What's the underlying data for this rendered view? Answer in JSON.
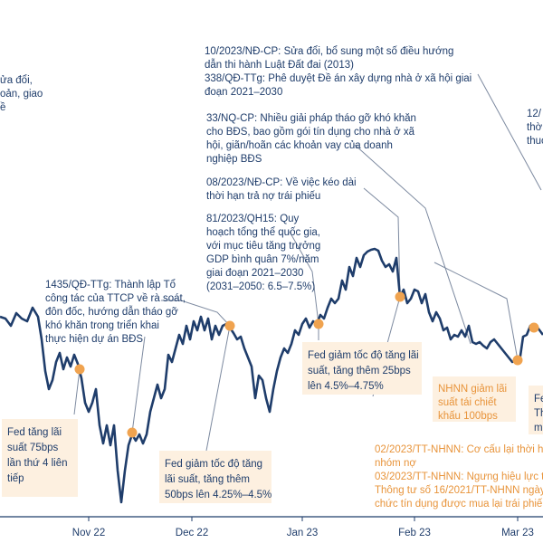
{
  "colors": {
    "line": "#1f3d6b",
    "marker": "#f0a34f",
    "box_bg": "#fdf0e0",
    "orange_text": "#e8943b",
    "axis": "#1f3d6b",
    "leader": "#7d8aa0"
  },
  "chart_data": {
    "type": "line",
    "title": "",
    "xlabel": "",
    "ylabel": "",
    "grid": false,
    "x_ticks": [
      "Nov 22",
      "Dec 22",
      "Jan 23",
      "Feb 23",
      "Mar 23"
    ],
    "annotations": {
      "top_left_cut": [
        "ửa đổi,",
        "oản, giao",
        "ề"
      ],
      "a1": [
        "10/2023/NĐ-CP: Sửa đổi, bổ sung một số điều hướng",
        "dẫn thi hành Luật Đất đai (2013)",
        "338/QĐ-TTg: Phê duyệt Đề án xây dựng nhà ở xã hội giai",
        "đoạn 2021–2030"
      ],
      "a2": [
        "33/NQ-CP: Nhiều giải pháp tháo gỡ khó khăn",
        "cho BĐS, bao gồm gói tín dụng cho nhà ở xã",
        "hội, giãn/hoãn các khoản vay của doanh",
        "nghiệp BĐS"
      ],
      "a3": [
        "08/2023/NĐ-CP: Về việc kéo dài",
        "thời hạn trả nợ trái phiếu"
      ],
      "a4": [
        "81/2023/QH15: Quy",
        "hoạch tổng thể quốc gia,",
        "với mục tiêu tăng trưởng",
        "GDP bình quân 7%/năm",
        "giai đoạn 2021–2030",
        "(2031–2050: 6.5–7.5%)"
      ],
      "a5": [
        "1435/QĐ-TTg: Thành lập Tổ",
        "công tác của TTCP về rà soát,",
        "đôn đốc, hướng dẫn tháo gỡ",
        "khó khăn trong triển khai",
        "thực hiện dự án BĐS"
      ],
      "a6_cut": [
        "12/",
        "thờ",
        "thuc"
      ],
      "box_fed1": [
        "Fed tăng lãi",
        "suất 75bps",
        "lần thứ 4 liên",
        "tiếp"
      ],
      "box_fed2": [
        "Fed giảm tốc độ tăng",
        "lãi suất, tăng thêm",
        "50bps lên 4.25%–4.5%"
      ],
      "box_fed3": [
        "Fed giảm tốc độ tăng lãi",
        "suất, tăng thêm 25bps",
        "lên 4.5%–4.75%"
      ],
      "box_nhnn": [
        "NHNN giảm lãi",
        "suất tái chiết",
        "khấu 100bps"
      ],
      "box_right_cut": [
        "Fe",
        "Th",
        "mụ"
      ],
      "orange_bottom": [
        "02/2023/TT-NHNN: Cơ cấu lại thời hạ",
        "nhóm nợ",
        "03/2023/TT-NHNN: Ngưng hiệu lực t",
        "Thông tư số 16/2021/TT-NHNN ngày",
        "chức tín dụng được mua lại trái phiế"
      ]
    },
    "series": [
      {
        "values": [
          [
            0,
            350
          ],
          [
            6,
            352
          ],
          [
            12,
            360
          ],
          [
            18,
            346
          ],
          [
            24,
            352
          ],
          [
            30,
            355
          ],
          [
            36,
            340
          ],
          [
            42,
            350
          ],
          [
            46,
            375
          ],
          [
            50,
            410
          ],
          [
            54,
            430
          ],
          [
            58,
            420
          ],
          [
            62,
            400
          ],
          [
            66,
            390
          ],
          [
            70,
            408
          ],
          [
            74,
            395
          ],
          [
            78,
            405
          ],
          [
            82,
            392
          ],
          [
            86,
            402
          ],
          [
            90,
            418
          ],
          [
            94,
            445
          ],
          [
            98,
            455
          ],
          [
            102,
            445
          ],
          [
            106,
            430
          ],
          [
            110,
            470
          ],
          [
            114,
            490
          ],
          [
            118,
            470
          ],
          [
            122,
            492
          ],
          [
            126,
            470
          ],
          [
            130,
            520
          ],
          [
            134,
            555
          ],
          [
            138,
            520
          ],
          [
            142,
            492
          ],
          [
            146,
            480
          ],
          [
            150,
            487
          ],
          [
            154,
            480
          ],
          [
            158,
            490
          ],
          [
            162,
            480
          ],
          [
            166,
            455
          ],
          [
            170,
            440
          ],
          [
            174,
            425
          ],
          [
            178,
            440
          ],
          [
            182,
            430
          ],
          [
            186,
            392
          ],
          [
            190,
            400
          ],
          [
            194,
            385
          ],
          [
            198,
            370
          ],
          [
            202,
            380
          ],
          [
            206,
            360
          ],
          [
            210,
            375
          ],
          [
            214,
            355
          ],
          [
            218,
            365
          ],
          [
            222,
            350
          ],
          [
            226,
            365
          ],
          [
            230,
            352
          ],
          [
            234,
            375
          ],
          [
            238,
            360
          ],
          [
            242,
            370
          ],
          [
            246,
            360
          ],
          [
            250,
            358
          ],
          [
            254,
            362
          ],
          [
            258,
            368
          ],
          [
            262,
            375
          ],
          [
            266,
            372
          ],
          [
            270,
            385
          ],
          [
            274,
            395
          ],
          [
            278,
            405
          ],
          [
            282,
            440
          ],
          [
            286,
            415
          ],
          [
            290,
            420
          ],
          [
            294,
            440
          ],
          [
            298,
            455
          ],
          [
            302,
            430
          ],
          [
            306,
            410
          ],
          [
            310,
            395
          ],
          [
            314,
            385
          ],
          [
            318,
            390
          ],
          [
            322,
            380
          ],
          [
            326,
            365
          ],
          [
            330,
            370
          ],
          [
            334,
            358
          ],
          [
            338,
            352
          ],
          [
            342,
            362
          ],
          [
            346,
            355
          ],
          [
            350,
            358
          ],
          [
            354,
            348
          ],
          [
            358,
            352
          ],
          [
            362,
            340
          ],
          [
            366,
            330
          ],
          [
            370,
            335
          ],
          [
            374,
            330
          ],
          [
            378,
            310
          ],
          [
            382,
            320
          ],
          [
            386,
            295
          ],
          [
            390,
            305
          ],
          [
            394,
            285
          ],
          [
            398,
            295
          ],
          [
            402,
            282
          ],
          [
            406,
            278
          ],
          [
            410,
            276
          ],
          [
            414,
            275
          ],
          [
            418,
            277
          ],
          [
            422,
            288
          ],
          [
            426,
            295
          ],
          [
            430,
            292
          ],
          [
            434,
            300
          ],
          [
            438,
            285
          ],
          [
            442,
            328
          ],
          [
            446,
            320
          ],
          [
            450,
            335
          ],
          [
            454,
            330
          ],
          [
            458,
            320
          ],
          [
            462,
            322
          ],
          [
            466,
            335
          ],
          [
            470,
            325
          ],
          [
            474,
            345
          ],
          [
            478,
            355
          ],
          [
            482,
            345
          ],
          [
            486,
            352
          ],
          [
            490,
            365
          ],
          [
            494,
            362
          ],
          [
            498,
            375
          ],
          [
            502,
            370
          ],
          [
            506,
            372
          ],
          [
            510,
            365
          ],
          [
            514,
            372
          ],
          [
            518,
            360
          ],
          [
            522,
            378
          ],
          [
            526,
            380
          ],
          [
            530,
            378
          ],
          [
            534,
            382
          ],
          [
            538,
            385
          ],
          [
            542,
            378
          ],
          [
            546,
            375
          ],
          [
            550,
            380
          ],
          [
            554,
            385
          ],
          [
            558,
            390
          ],
          [
            562,
            395
          ],
          [
            566,
            400
          ],
          [
            570,
            398
          ],
          [
            574,
            400
          ],
          [
            578,
            372
          ],
          [
            582,
            370
          ],
          [
            586,
            360
          ],
          [
            590,
            365
          ],
          [
            594,
            362
          ],
          [
            600,
            370
          ]
        ]
      }
    ],
    "markers": [
      [
        88,
        408
      ],
      [
        146,
        478
      ],
      [
        254,
        360
      ],
      [
        352,
        358
      ],
      [
        442,
        328
      ],
      [
        572,
        398
      ],
      [
        590,
        362
      ]
    ]
  }
}
